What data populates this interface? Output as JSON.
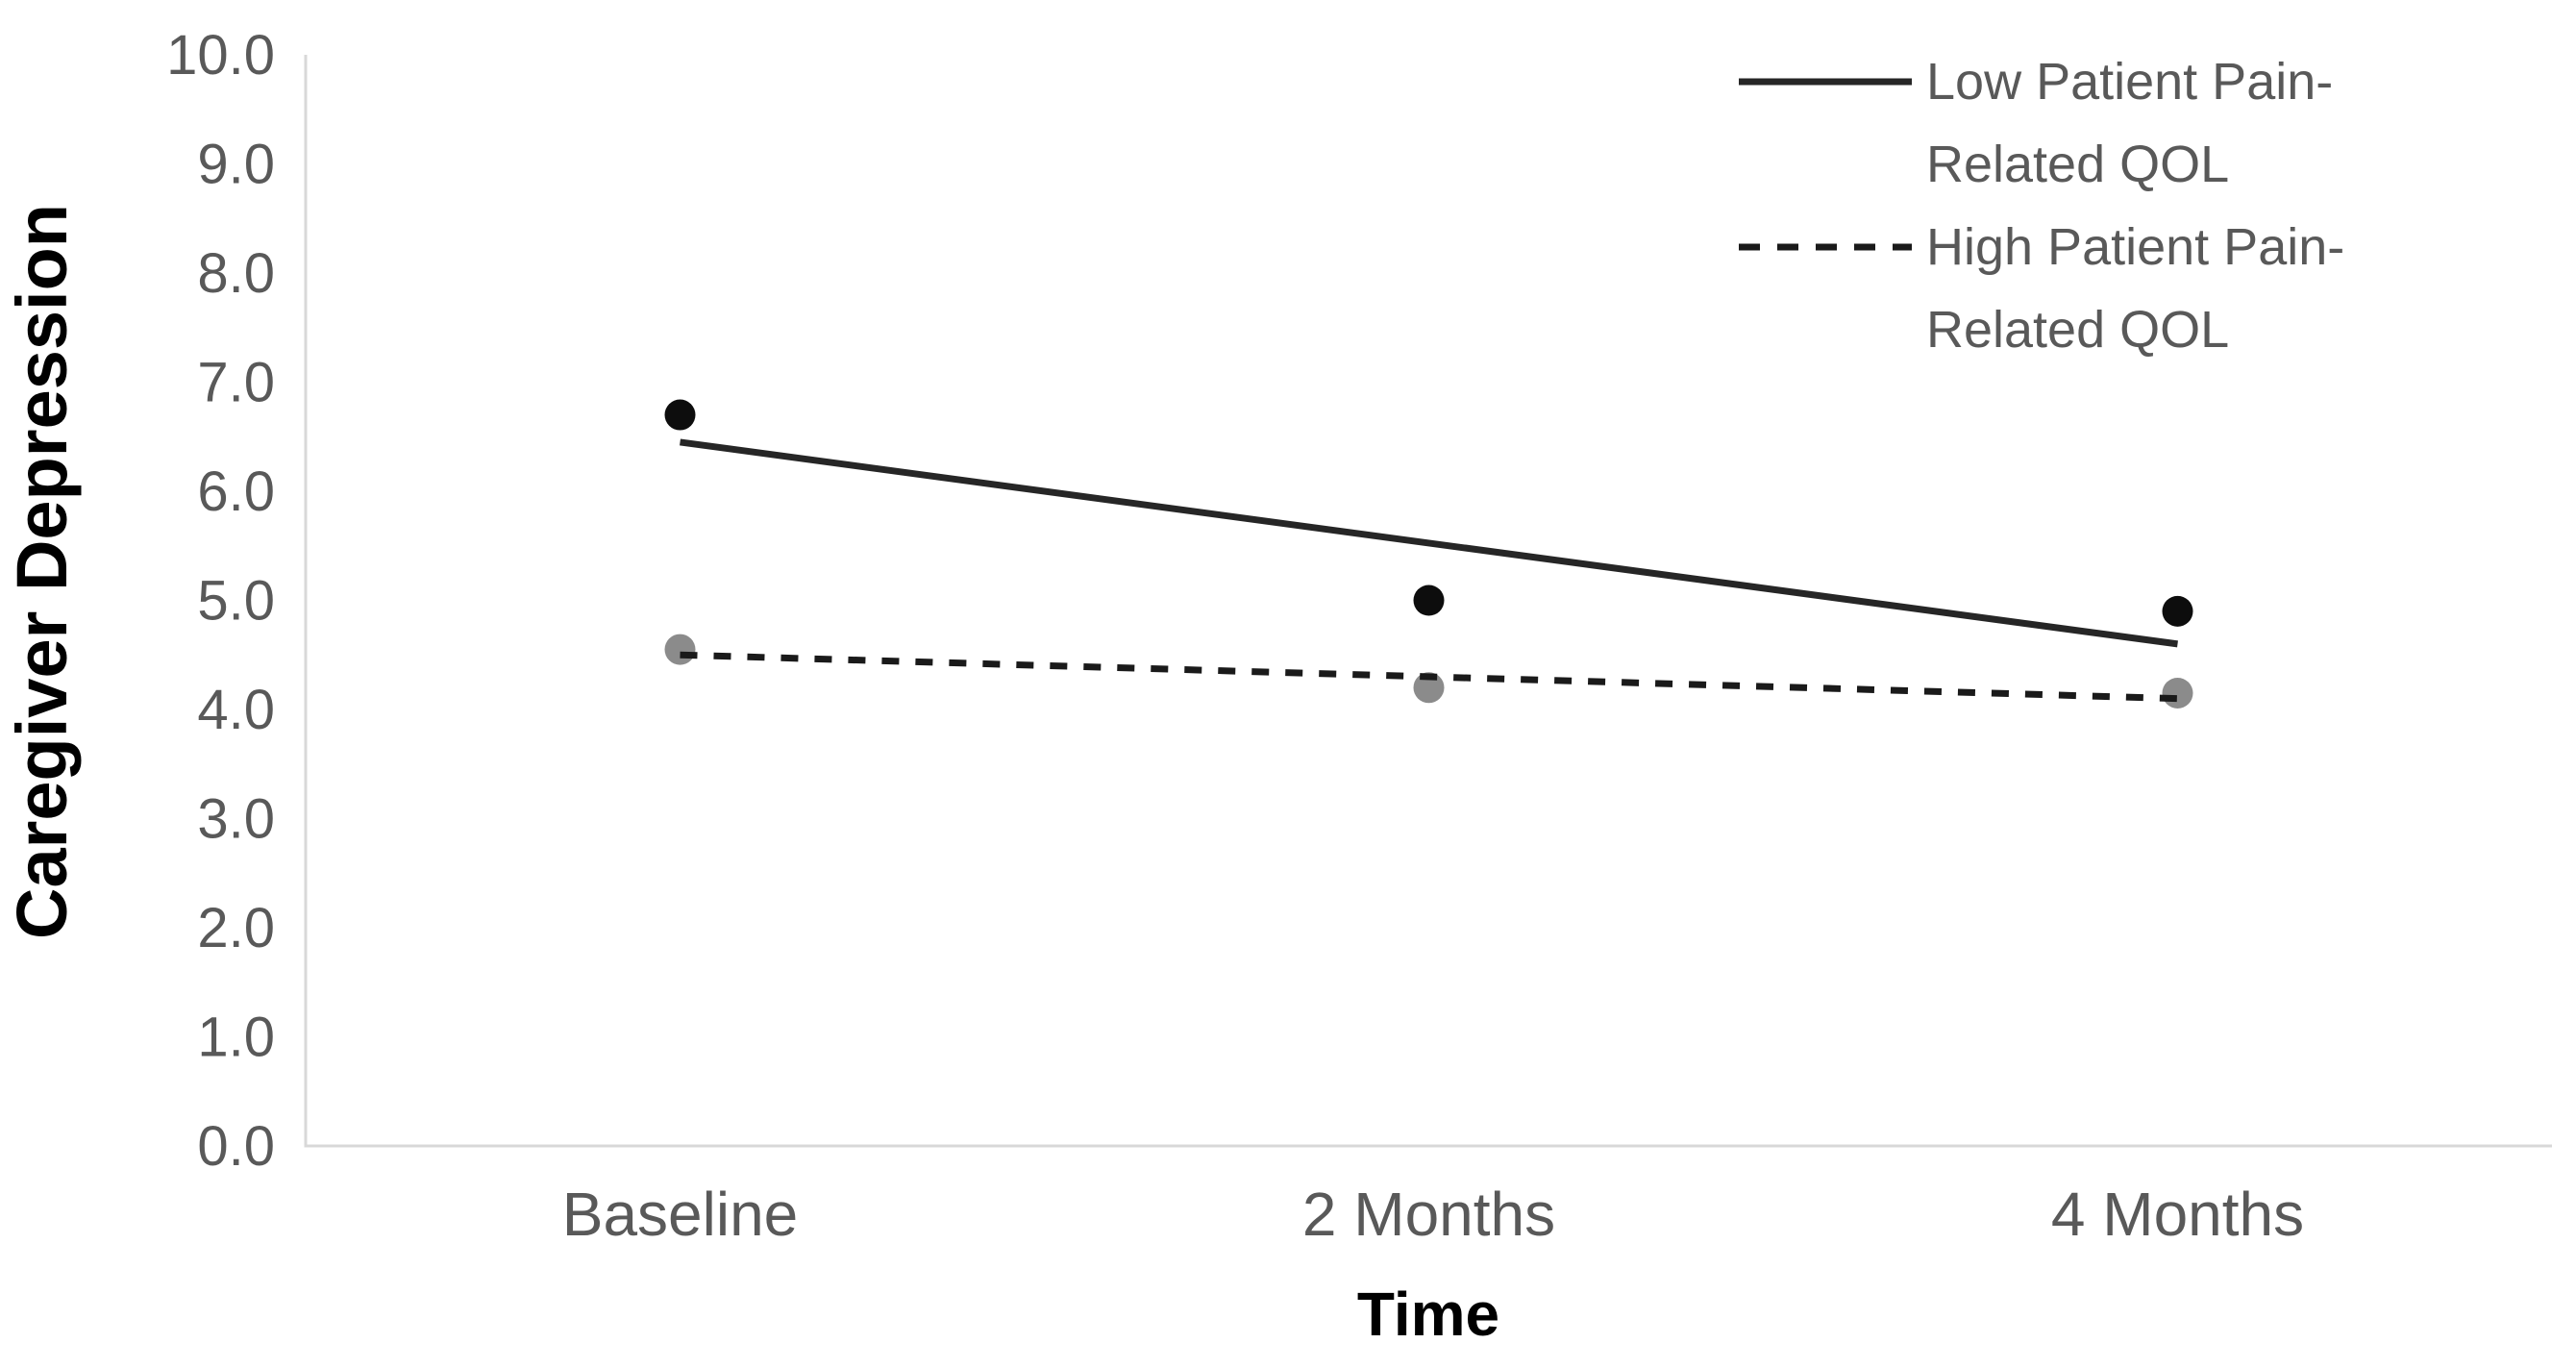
{
  "chart_data": {
    "type": "scatter",
    "title": "",
    "xlabel": "Time",
    "ylabel": "Caregiver Depression",
    "categories": [
      "Baseline",
      "2 Months",
      "4 Months"
    ],
    "y_axis": {
      "min": 0,
      "max": 10,
      "step": 1,
      "tick_labels": [
        "0.0",
        "1.0",
        "2.0",
        "3.0",
        "4.0",
        "5.0",
        "6.0",
        "7.0",
        "8.0",
        "9.0",
        "10.0"
      ]
    },
    "grid": false,
    "legend_position": "top-right",
    "series": [
      {
        "name": "Low Patient Pain-Related QOL",
        "line_style": "solid",
        "marker_values": [
          6.7,
          5.0,
          4.9
        ],
        "trend_line": {
          "start": 6.45,
          "end": 4.6
        },
        "marker_color": "#0d0d0d",
        "line_color": "#262626"
      },
      {
        "name": "High Patient Pain-Related QOL",
        "line_style": "dashed",
        "marker_values": [
          4.55,
          4.2,
          4.15
        ],
        "trend_line": {
          "start": 4.5,
          "end": 4.1
        },
        "marker_color": "#8b8b8b",
        "line_color": "#1a1a1a"
      }
    ],
    "colors": {
      "axis_line": "#d8d8d8",
      "tick_text": "#595959",
      "title_text": "#000000",
      "background": "#ffffff"
    }
  }
}
